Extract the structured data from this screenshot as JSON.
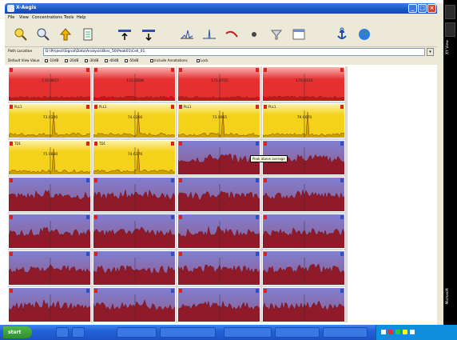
{
  "window": {
    "title": "X-Aegis",
    "colors": {
      "titlebar": "#1a56c8",
      "menubar": "#ece9d8"
    }
  },
  "menu": [
    "File",
    "View",
    "Concentrations",
    "Tools",
    "Help"
  ],
  "toolbar": {
    "icons": [
      "magnifier-icon",
      "search-icon",
      "arrow-icon",
      "document-icon",
      "peak-up-icon",
      "peak-down-icon",
      "spectrum-icon",
      "peak-icon",
      "line-icon",
      "stop-icon",
      "filter-icon",
      "window-icon",
      "anchor-icon",
      "globe-icon"
    ]
  },
  "path": {
    "label": "Path Location",
    "value": "D:\\Project\\Signal\\Data\\Analysis\\Bins_50\\Peak01\\Cell_01"
  },
  "options": {
    "default_view_label": "Default View Value",
    "items": [
      "-10dB",
      "-20dB",
      "-30dB",
      "-40dB",
      "-50dB"
    ],
    "include_label": "Include Annotations",
    "lock_label": "Lock"
  },
  "colors": {
    "red_row": "#e63030",
    "red_light": "#f7b3b3",
    "yellow_row": "#f4d21c",
    "yellow_light": "#fdf1a8",
    "blue_top": "#7f7fd2",
    "blue_bottom": "#b22a3a",
    "accent_red": "#e02020"
  },
  "tooltip": "Peak above average",
  "grid": {
    "rows": [
      {
        "type": "red",
        "labels": [
          "170.4637",
          "172.0208",
          "171.0755",
          "170.6151"
        ]
      },
      {
        "type": "yellow",
        "labels": [
          "73.0200",
          "74.0260",
          "73.9965",
          "79.6070"
        ],
        "tag": "PLL1"
      },
      {
        "type": "yellow2",
        "labels": [
          "75.0830",
          "74.6376",
          "",
          ""
        ],
        "tag": "TD1"
      },
      {
        "type": "blue",
        "labels": [
          "",
          "",
          "",
          ""
        ]
      },
      {
        "type": "blue",
        "labels": [
          "",
          "",
          "",
          ""
        ]
      },
      {
        "type": "blue",
        "labels": [
          "",
          "",
          "",
          ""
        ]
      },
      {
        "type": "blue",
        "labels": [
          "",
          "",
          "",
          ""
        ]
      }
    ]
  },
  "taskbar": {
    "start": "start",
    "tasks": [
      "",
      "",
      "",
      "",
      "",
      "",
      ""
    ],
    "clock": "",
    "right_bar_text": [
      "XY View",
      "Microsoft"
    ]
  }
}
